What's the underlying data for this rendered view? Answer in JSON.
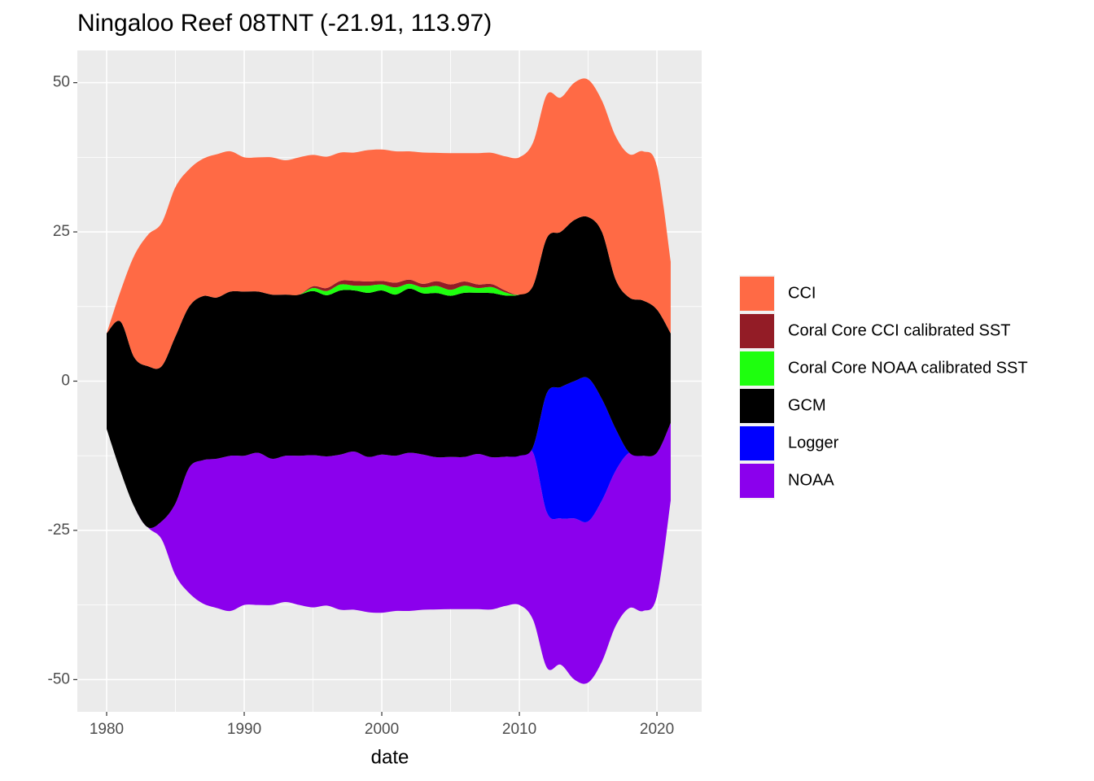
{
  "chart_data": {
    "type": "stream",
    "title": "Ningaloo Reef 08TNT (-21.91, 113.97)",
    "x_label": "date",
    "x": [
      1980,
      1981,
      1982,
      1983,
      1984,
      1985,
      1986,
      1987,
      1988,
      1989,
      1990,
      1991,
      1992,
      1993,
      1994,
      1995,
      1996,
      1997,
      1998,
      1999,
      2000,
      2001,
      2002,
      2003,
      2004,
      2005,
      2006,
      2007,
      2008,
      2009,
      2010,
      2011,
      2012,
      2013,
      2014,
      2015,
      2016,
      2017,
      2018,
      2019,
      2020,
      2021
    ],
    "series": [
      {
        "name": "CCI",
        "color": "#ff6a45",
        "values": [
          0,
          5,
          17,
          22,
          24,
          25,
          23,
          23,
          24,
          23.5,
          22.5,
          22.5,
          23,
          22.5,
          23,
          22,
          22,
          21.5,
          21.5,
          22,
          22,
          22,
          21.5,
          22,
          21.5,
          22,
          21.5,
          22,
          22,
          22.5,
          23,
          24,
          24,
          22.5,
          23,
          23,
          22,
          24,
          24,
          25,
          24,
          12
        ]
      },
      {
        "name": "Coral Core CCI calibrated SST",
        "color": "#931c26",
        "values": [
          0,
          0,
          0,
          0,
          0,
          0,
          0,
          0,
          0,
          0,
          0,
          0,
          0,
          0,
          0,
          0.3,
          0.5,
          0.6,
          0.8,
          0.7,
          0.6,
          0.8,
          0.7,
          0.6,
          0.8,
          0.9,
          0.7,
          0.6,
          0.5,
          0.3,
          0,
          0,
          0,
          0,
          0,
          0,
          0,
          0,
          0,
          0,
          0,
          0
        ]
      },
      {
        "name": "Coral Core NOAA calibrated SST",
        "color": "#1eff0e",
        "values": [
          0,
          0,
          0,
          0,
          0,
          0,
          0,
          0,
          0,
          0,
          0,
          0,
          0,
          0,
          0,
          0.5,
          0.7,
          1,
          0.8,
          1.2,
          1,
          1.2,
          0.8,
          1,
          1.2,
          1,
          1.2,
          0.8,
          1,
          0.5,
          0,
          0,
          0,
          0,
          0,
          0,
          0,
          0,
          0,
          0,
          0,
          0
        ]
      },
      {
        "name": "GCM",
        "color": "#000000",
        "values": [
          16,
          25,
          25,
          27,
          26,
          28,
          27,
          27.5,
          27,
          27.5,
          27.5,
          27,
          27.5,
          27,
          27,
          27.5,
          27,
          27.5,
          27,
          27.5,
          27.5,
          27,
          27.5,
          27,
          27.5,
          27,
          27.5,
          27,
          27.5,
          27,
          27,
          27,
          26,
          26,
          27,
          27,
          28,
          25,
          26,
          26,
          24,
          15
        ]
      },
      {
        "name": "Logger",
        "color": "#0000ff",
        "values": [
          0,
          0,
          0,
          0,
          0,
          0,
          0,
          0,
          0,
          0,
          0,
          0,
          0,
          0,
          0,
          0,
          0,
          0,
          0,
          0,
          0,
          0,
          0,
          0,
          0,
          0,
          0,
          0,
          0,
          0,
          0,
          1,
          20,
          22,
          23,
          24,
          17,
          7,
          0,
          0,
          0,
          0
        ]
      },
      {
        "name": "NOAA",
        "color": "#8b00ed",
        "values": [
          0,
          0,
          0,
          0,
          3,
          12,
          21,
          24,
          25,
          26,
          25,
          25.5,
          24.5,
          24.5,
          25,
          25.5,
          25,
          26,
          26.5,
          26,
          26.5,
          26,
          26.5,
          26,
          25.5,
          25.5,
          25.5,
          26,
          25.5,
          25,
          25,
          28,
          26,
          24.5,
          27,
          27,
          27,
          26,
          26,
          26,
          24,
          13
        ]
      }
    ],
    "xlim": [
      1977.87,
      2023.25
    ],
    "xticks": [
      1980,
      1990,
      2000,
      2010,
      2020
    ],
    "ylim": [
      -55.4,
      55.4
    ],
    "yticks": [
      -50,
      -25,
      0,
      25,
      50
    ],
    "grid": true
  }
}
